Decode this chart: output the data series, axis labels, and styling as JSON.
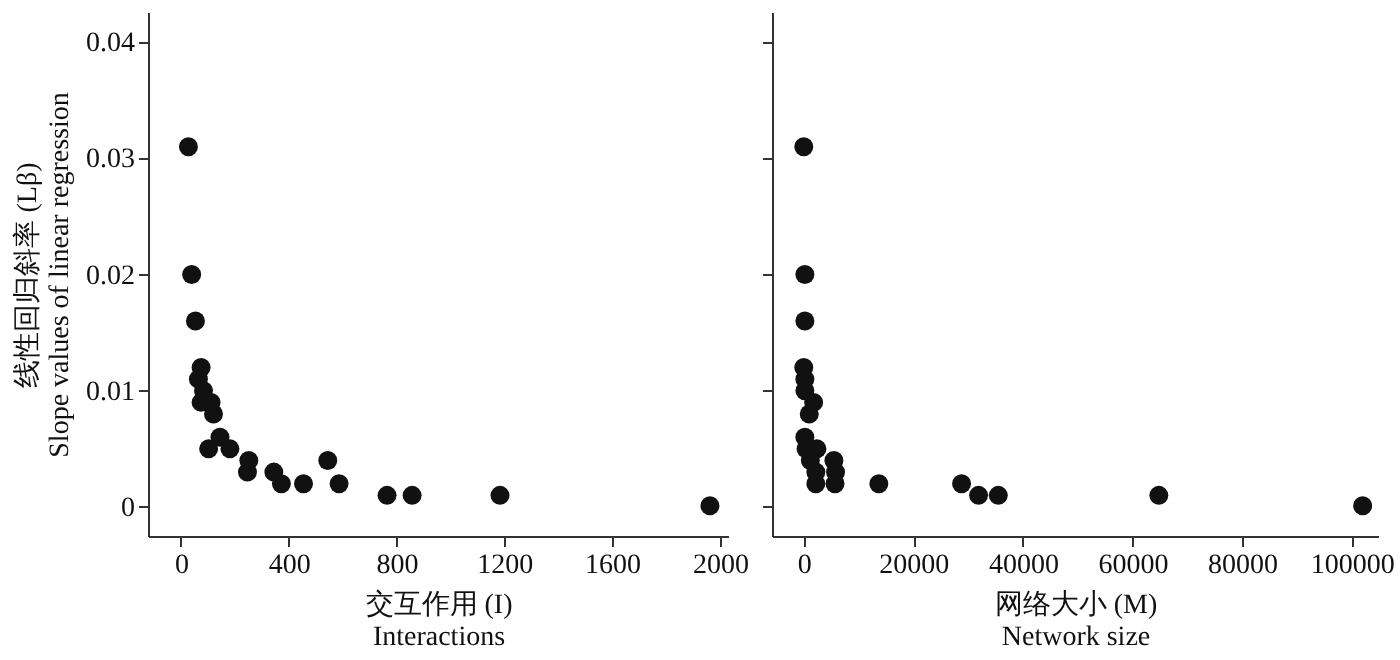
{
  "chart_data": [
    {
      "type": "scatter",
      "ylabel": "线性回归斜率 (Lβ)\nSlope values of linear regression",
      "xlabel": "交互作用 (I)\nInteractions",
      "marker": "circle",
      "grid": false,
      "legend": false,
      "xlim": [
        -122,
        2030
      ],
      "xticks": [
        0,
        400,
        800,
        1200,
        1600,
        2000
      ],
      "ylim": [
        -0.0025,
        0.0426
      ],
      "yticks": [
        0,
        0.01,
        0.02,
        0.03,
        0.04
      ],
      "x": [
        28,
        40,
        54,
        75,
        65,
        84,
        75,
        112,
        121,
        103,
        145,
        182,
        252,
        247,
        345,
        373,
        455,
        545,
        587,
        765,
        858,
        1184,
        1963
      ],
      "series": [
        {
          "color": "#111111",
          "values": [
            0.031,
            0.02,
            0.016,
            0.012,
            0.011,
            0.01,
            0.009,
            0.009,
            0.008,
            0.005,
            0.006,
            0.005,
            0.004,
            0.003,
            0.003,
            0.002,
            0.002,
            0.004,
            0.002,
            0.001,
            0.001,
            0.001,
            0.0001
          ]
        }
      ]
    },
    {
      "type": "scatter",
      "xlabel": "网络大小 (M)\nNetwork size",
      "marker": "circle",
      "grid": false,
      "legend": false,
      "tick_labels": "x",
      "xlim": [
        -5800,
        104800
      ],
      "xticks": [
        0,
        20000,
        40000,
        60000,
        80000,
        100000
      ],
      "ylim": [
        -0.0025,
        0.0426
      ],
      "yticks": [
        0,
        0.01,
        0.02,
        0.03,
        0.04
      ],
      "x": [
        0,
        200,
        200,
        0,
        200,
        200,
        1800,
        1000,
        200,
        400,
        2400,
        1200,
        2200,
        2200,
        5500,
        5800,
        5700,
        13700,
        28800,
        31900,
        35500,
        64800,
        102000
      ],
      "series": [
        {
          "color": "#111111",
          "values": [
            0.031,
            0.02,
            0.016,
            0.012,
            0.011,
            0.01,
            0.009,
            0.008,
            0.006,
            0.005,
            0.005,
            0.004,
            0.003,
            0.002,
            0.004,
            0.003,
            0.002,
            0.002,
            0.002,
            0.001,
            0.001,
            0.001,
            0.0001
          ]
        }
      ]
    }
  ]
}
